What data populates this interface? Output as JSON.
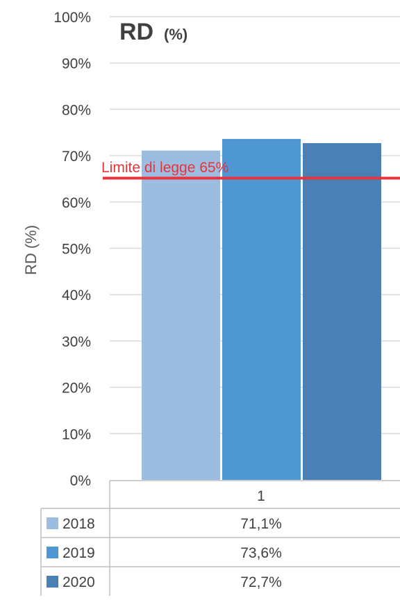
{
  "chart_data": {
    "type": "bar",
    "title": "RD",
    "title_unit": "(%)",
    "ylabel": "RD (%)",
    "xlabel": "",
    "ylim": [
      0,
      100
    ],
    "yticks": [
      "0%",
      "10%",
      "20%",
      "30%",
      "40%",
      "50%",
      "60%",
      "70%",
      "80%",
      "90%",
      "100%"
    ],
    "categories": [
      "1"
    ],
    "series": [
      {
        "name": "2018",
        "values": [
          71.1
        ],
        "label": "71,1%",
        "color": "#9dbde0"
      },
      {
        "name": "2019",
        "values": [
          73.6
        ],
        "label": "73,6%",
        "color": "#4f97d3"
      },
      {
        "name": "2020",
        "values": [
          72.7
        ],
        "label": "72,7%",
        "color": "#4a80b3"
      }
    ],
    "reference_line": {
      "value": 65,
      "label": "Limite di legge 65%",
      "color": "#e8333a"
    },
    "grid": true,
    "data_table": true
  }
}
